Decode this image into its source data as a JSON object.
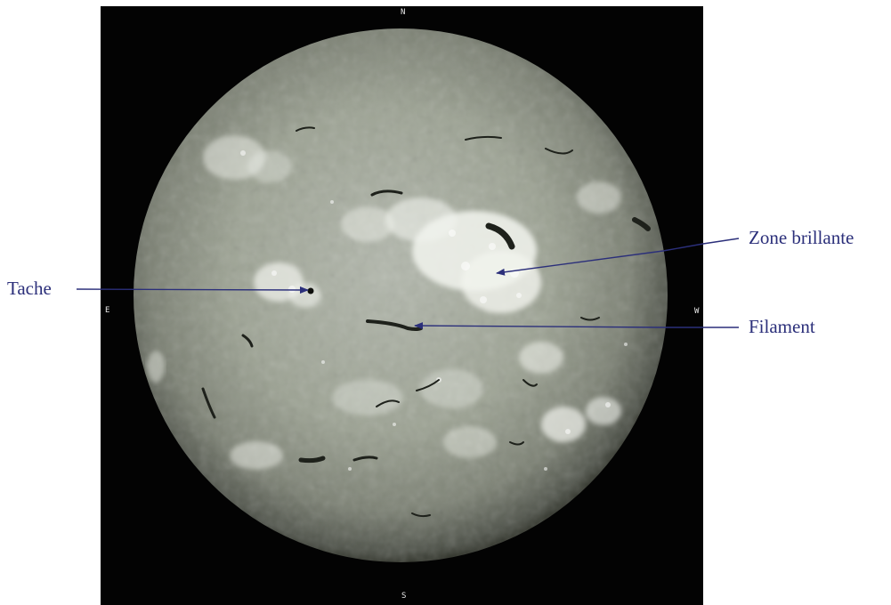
{
  "image": {
    "compass": {
      "north": "N",
      "south": "S",
      "east": "E",
      "west": "W"
    },
    "annotations": [
      {
        "id": "tache",
        "label": "Tache"
      },
      {
        "id": "zone",
        "label": "Zone brillante"
      },
      {
        "id": "filament",
        "label": "Filament"
      }
    ]
  },
  "colors": {
    "background": "#ffffff",
    "frame": "#030303",
    "disk_center": "#aab0a3",
    "disk_limb": "#3e4139",
    "annotation": "#2b2f7a"
  }
}
